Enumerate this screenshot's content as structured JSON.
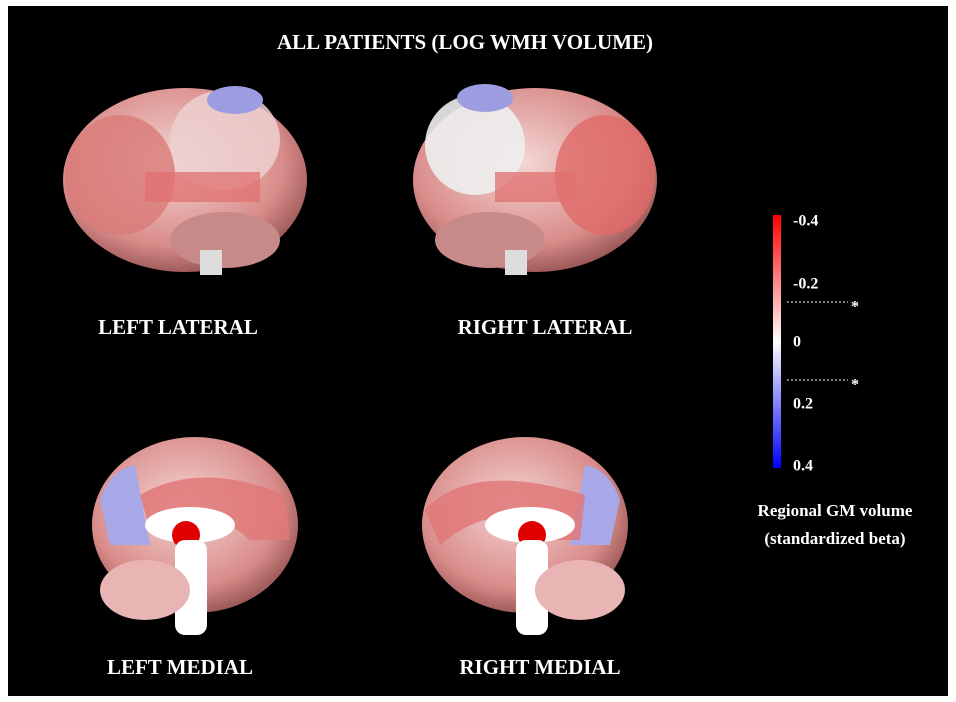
{
  "header": {
    "title": "ALL PATIENTS (LOG WMH VOLUME)"
  },
  "panels": [
    {
      "label": "LEFT LATERAL"
    },
    {
      "label": "RIGHT LATERAL"
    },
    {
      "label": "LEFT MEDIAL"
    },
    {
      "label": "RIGHT MEDIAL"
    }
  ],
  "colorbar": {
    "ticks": [
      "-0.4",
      "-0.2",
      "0",
      "0.2",
      "0.4"
    ],
    "significance_marks": [
      "*",
      "*"
    ],
    "label": [
      "Regional GM volume",
      "(standardized beta)"
    ]
  }
}
